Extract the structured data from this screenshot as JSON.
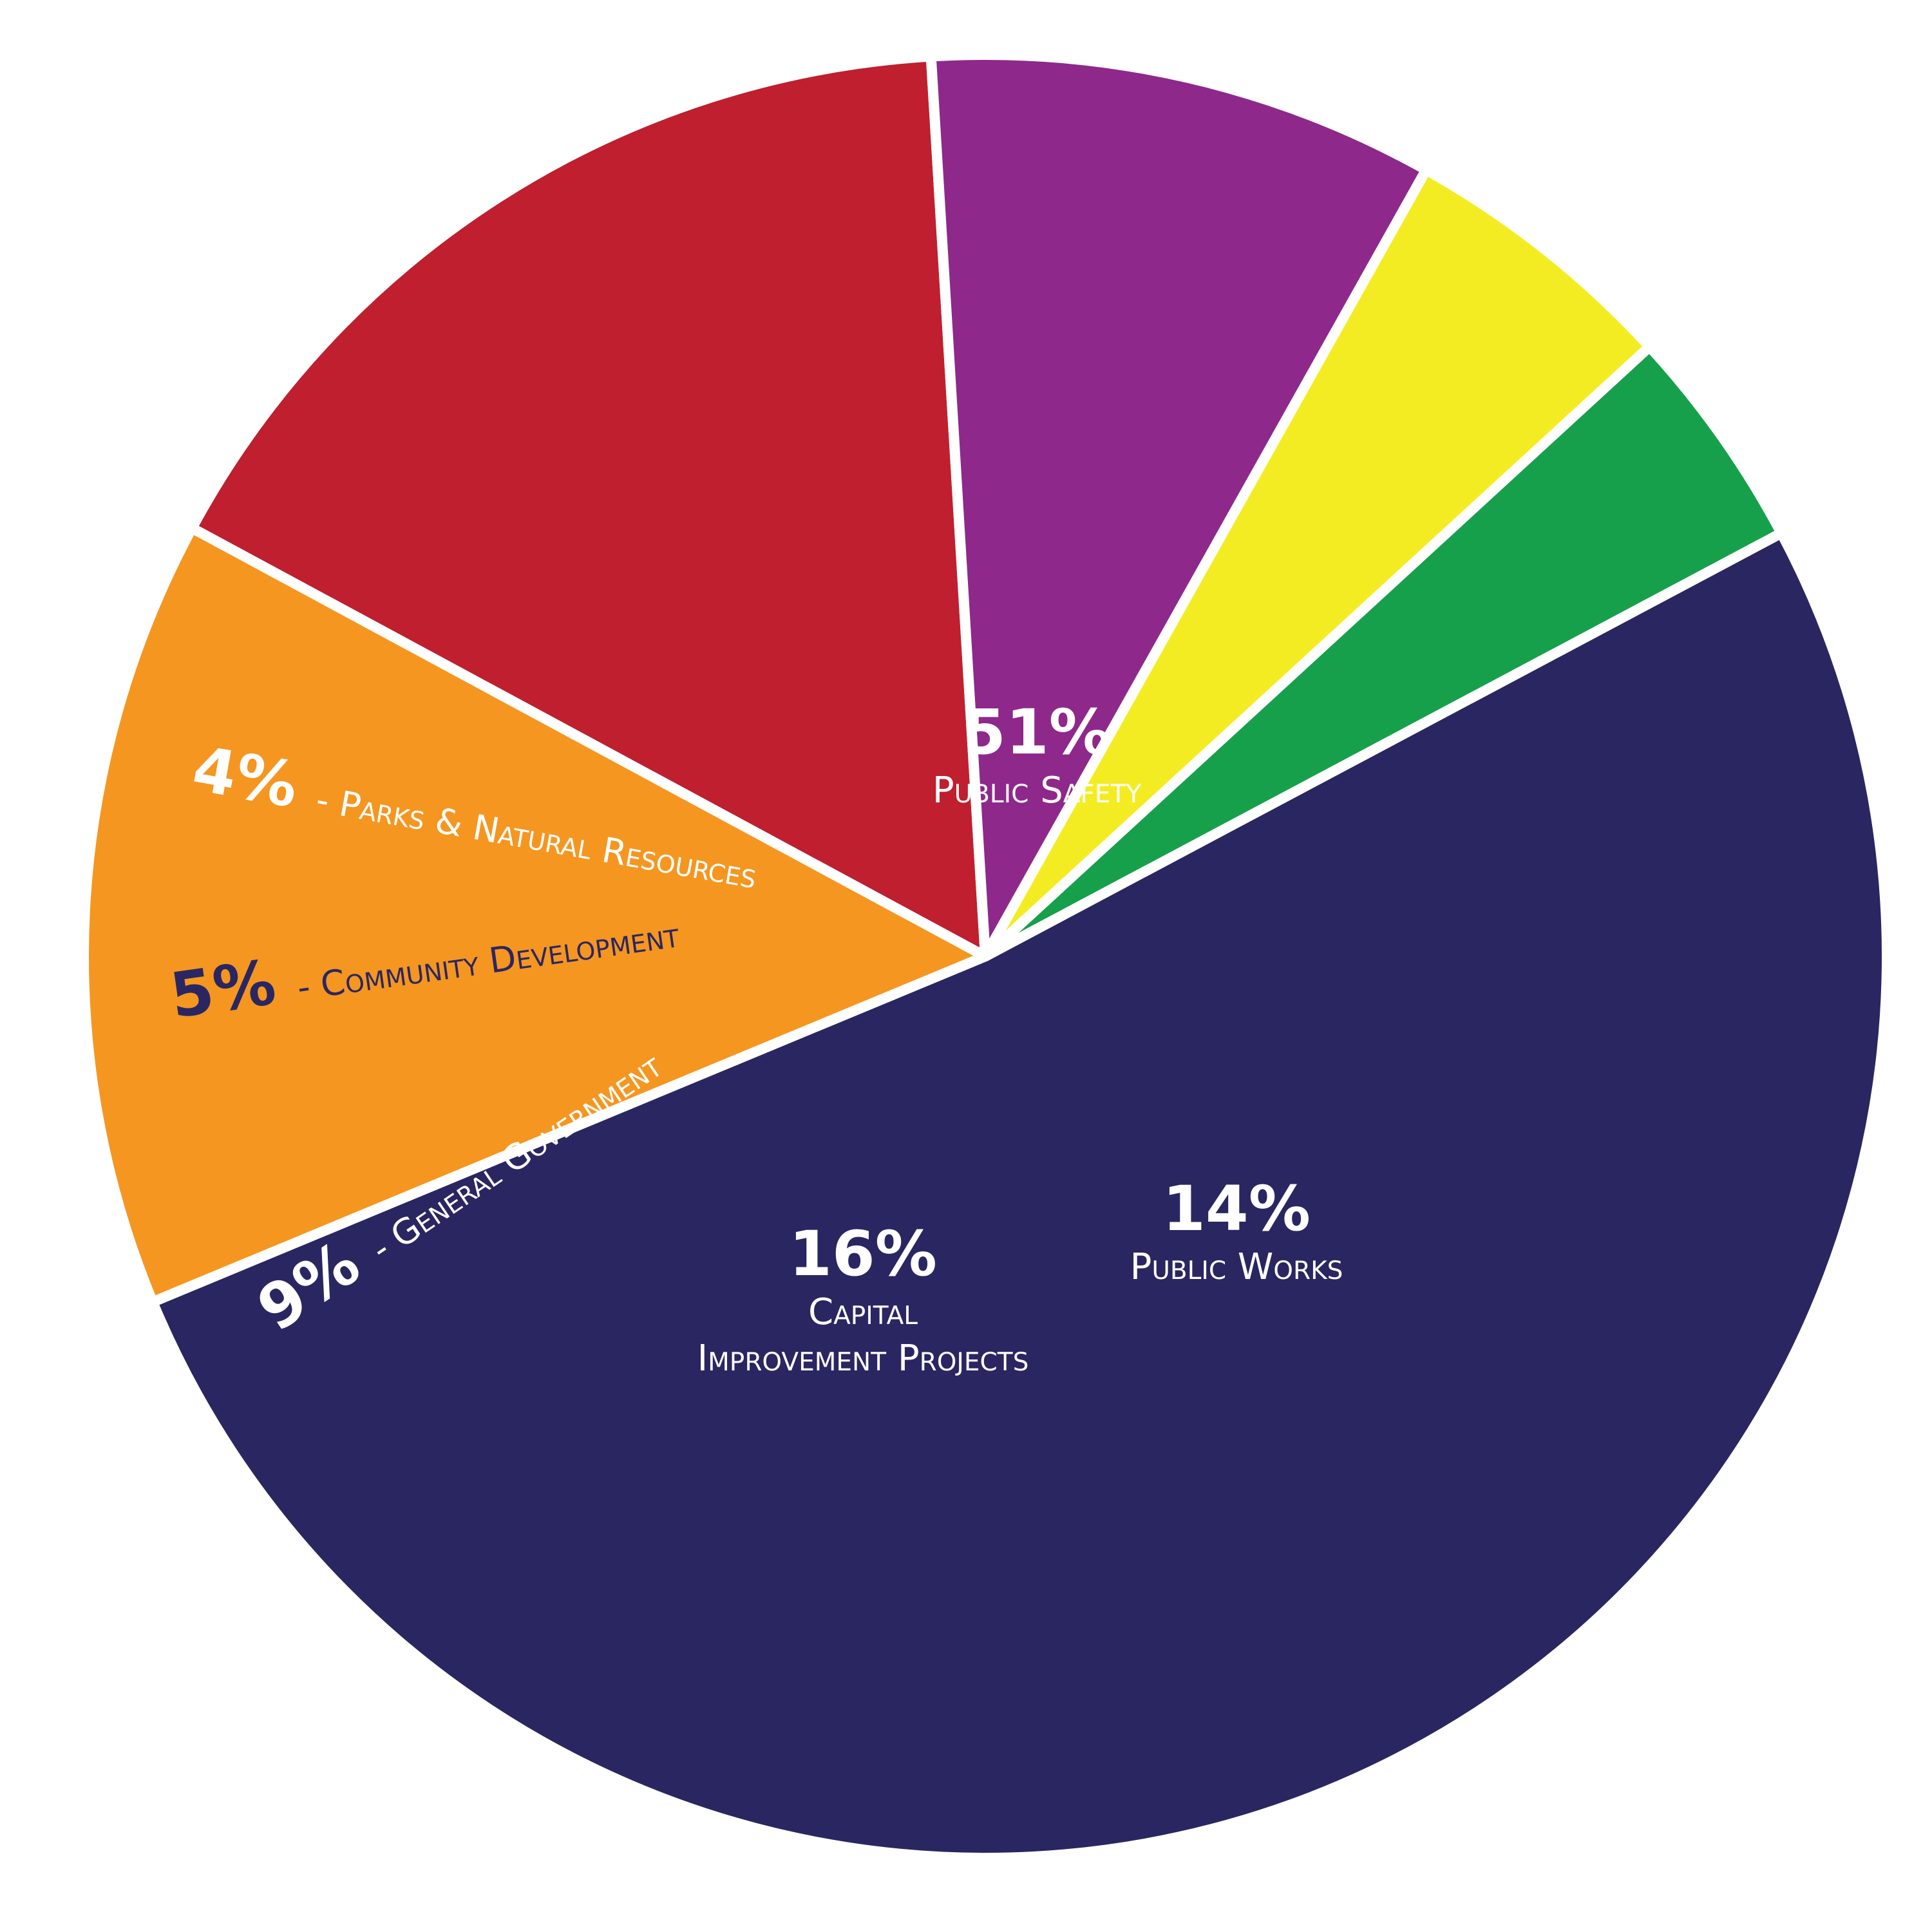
{
  "chart_data": {
    "type": "pie",
    "title": "",
    "slices": [
      {
        "name": "Public Safety",
        "value": 51,
        "percent_label": "51%",
        "label_line1": "Public Safety",
        "label_line2": "",
        "color": "#2a2661",
        "text_color": "#ffffff",
        "label_style": "stacked"
      },
      {
        "name": "Public Works",
        "value": 14,
        "percent_label": "14%",
        "label_line1": "Public Works",
        "label_line2": "",
        "color": "#f59621",
        "text_color": "#ffffff",
        "label_style": "stacked"
      },
      {
        "name": "Capital Improvement Projects",
        "value": 16,
        "percent_label": "16%",
        "label_line1": "Capital",
        "label_line2": "Improvement Projects",
        "color": "#bf1f2e",
        "text_color": "#ffffff",
        "label_style": "stacked"
      },
      {
        "name": "General Government",
        "value": 9,
        "percent_label": "9%",
        "label_line1": "- General Government",
        "label_line2": "",
        "color": "#8e288b",
        "text_color": "#ffffff",
        "label_style": "inline"
      },
      {
        "name": "Community Development",
        "value": 5,
        "percent_label": "5%",
        "label_line1": "- Community Development",
        "label_line2": "",
        "color": "#f4ec22",
        "text_color": "#2a2661",
        "label_style": "inline"
      },
      {
        "name": "Parks & Natural Resources",
        "value": 4,
        "percent_label": "4%",
        "label_line1": "- Parks & Natural Resources",
        "label_line2": "",
        "color": "#17a04b",
        "text_color": "#ffffff",
        "label_style": "inline"
      }
    ]
  }
}
